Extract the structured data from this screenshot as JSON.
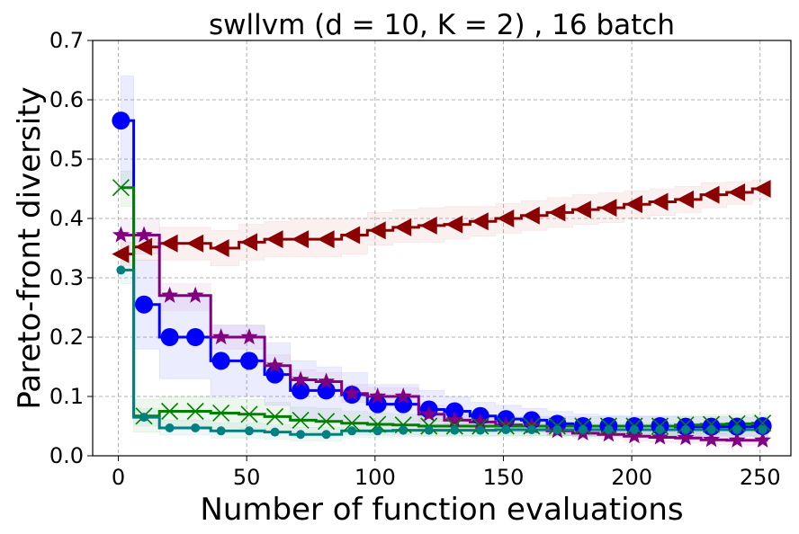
{
  "chart_data": {
    "type": "line",
    "title": "swllvm (d = 10, K = 2) , 16 batch",
    "xlabel": "Number of function evaluations",
    "ylabel": "Pareto-front diversity",
    "xlim": [
      -10,
      262
    ],
    "ylim": [
      0.0,
      0.7
    ],
    "xticks": [
      0,
      50,
      100,
      150,
      200,
      250
    ],
    "yticks": [
      0.0,
      0.1,
      0.2,
      0.3,
      0.4,
      0.5,
      0.6,
      0.7
    ],
    "xtick_labels": [
      "0",
      "50",
      "100",
      "150",
      "200",
      "250"
    ],
    "ytick_labels": [
      "0.0",
      "0.1",
      "0.2",
      "0.3",
      "0.4",
      "0.5",
      "0.6",
      "0.7"
    ],
    "grid": true,
    "series": [
      {
        "name": "Series (blue circle)",
        "color": "#0000ff",
        "marker": "circle",
        "band_color": "#6f6fff",
        "x": [
          1,
          10,
          20,
          30,
          40,
          51,
          61,
          71,
          81,
          91,
          101,
          111,
          121,
          131,
          141,
          151,
          161,
          171,
          181,
          191,
          201,
          211,
          221,
          231,
          241,
          251
        ],
        "values": [
          0.565,
          0.255,
          0.2,
          0.2,
          0.16,
          0.16,
          0.137,
          0.11,
          0.11,
          0.103,
          0.087,
          0.087,
          0.078,
          0.075,
          0.067,
          0.062,
          0.06,
          0.054,
          0.05,
          0.05,
          0.05,
          0.05,
          0.049,
          0.049,
          0.049,
          0.05
        ],
        "upper": [
          0.64,
          0.33,
          0.27,
          0.27,
          0.22,
          0.22,
          0.19,
          0.16,
          0.15,
          0.14,
          0.12,
          0.12,
          0.11,
          0.1,
          0.09,
          0.085,
          0.08,
          0.075,
          0.07,
          0.068,
          0.067,
          0.067,
          0.066,
          0.066,
          0.065,
          0.066
        ],
        "lower": [
          0.45,
          0.18,
          0.13,
          0.13,
          0.1,
          0.1,
          0.085,
          0.06,
          0.06,
          0.06,
          0.05,
          0.05,
          0.045,
          0.045,
          0.04,
          0.04,
          0.04,
          0.035,
          0.033,
          0.033,
          0.033,
          0.033,
          0.033,
          0.033,
          0.033,
          0.033
        ]
      },
      {
        "name": "Series (dark red triangle)",
        "color": "#8b0000",
        "marker": "triangle-left",
        "band_color": "#d98b8b",
        "x": [
          1,
          10,
          20,
          30,
          40,
          51,
          61,
          71,
          81,
          91,
          101,
          111,
          121,
          131,
          141,
          151,
          161,
          171,
          181,
          191,
          201,
          211,
          221,
          231,
          241,
          251
        ],
        "values": [
          0.34,
          0.352,
          0.358,
          0.358,
          0.35,
          0.36,
          0.365,
          0.365,
          0.365,
          0.372,
          0.38,
          0.385,
          0.388,
          0.39,
          0.395,
          0.4,
          0.405,
          0.41,
          0.415,
          0.418,
          0.424,
          0.428,
          0.432,
          0.44,
          0.444,
          0.45
        ],
        "upper": [
          0.36,
          0.375,
          0.385,
          0.385,
          0.38,
          0.39,
          0.395,
          0.4,
          0.4,
          0.4,
          0.41,
          0.415,
          0.418,
          0.42,
          0.42,
          0.425,
          0.43,
          0.435,
          0.44,
          0.443,
          0.447,
          0.45,
          0.454,
          0.46,
          0.462,
          0.465
        ],
        "lower": [
          0.32,
          0.33,
          0.33,
          0.33,
          0.32,
          0.33,
          0.335,
          0.335,
          0.335,
          0.34,
          0.355,
          0.36,
          0.36,
          0.365,
          0.37,
          0.375,
          0.38,
          0.385,
          0.39,
          0.393,
          0.4,
          0.405,
          0.41,
          0.418,
          0.424,
          0.432
        ]
      },
      {
        "name": "Series (purple star)",
        "color": "#800080",
        "marker": "star",
        "band_color": "#c48cc4",
        "x": [
          1,
          10,
          20,
          30,
          40,
          51,
          61,
          71,
          81,
          91,
          101,
          111,
          121,
          131,
          141,
          151,
          161,
          171,
          181,
          191,
          201,
          211,
          221,
          231,
          241,
          251
        ],
        "values": [
          0.372,
          0.372,
          0.27,
          0.27,
          0.2,
          0.2,
          0.152,
          0.128,
          0.125,
          0.105,
          0.1,
          0.1,
          0.07,
          0.06,
          0.057,
          0.052,
          0.05,
          0.042,
          0.038,
          0.036,
          0.033,
          0.031,
          0.03,
          0.027,
          0.026,
          0.026
        ],
        "upper": [
          0.4,
          0.4,
          0.29,
          0.29,
          0.22,
          0.22,
          0.17,
          0.145,
          0.14,
          0.12,
          0.115,
          0.115,
          0.085,
          0.072,
          0.068,
          0.063,
          0.06,
          0.052,
          0.048,
          0.046,
          0.043,
          0.041,
          0.04,
          0.037,
          0.036,
          0.036
        ],
        "lower": [
          0.34,
          0.34,
          0.245,
          0.245,
          0.18,
          0.18,
          0.135,
          0.11,
          0.11,
          0.09,
          0.085,
          0.085,
          0.058,
          0.05,
          0.047,
          0.043,
          0.041,
          0.034,
          0.03,
          0.028,
          0.025,
          0.023,
          0.022,
          0.019,
          0.018,
          0.018
        ]
      },
      {
        "name": "Series (green x)",
        "color": "#008000",
        "marker": "x",
        "band_color": "#7fbf7f",
        "x": [
          1,
          10,
          20,
          30,
          40,
          51,
          61,
          71,
          81,
          91,
          101,
          111,
          121,
          131,
          141,
          151,
          161,
          171,
          181,
          191,
          201,
          211,
          221,
          231,
          241,
          251
        ],
        "values": [
          0.452,
          0.067,
          0.075,
          0.075,
          0.072,
          0.07,
          0.066,
          0.06,
          0.058,
          0.055,
          0.053,
          0.052,
          0.05,
          0.05,
          0.05,
          0.05,
          0.05,
          0.05,
          0.05,
          0.05,
          0.05,
          0.05,
          0.052,
          0.053,
          0.054,
          0.055
        ],
        "upper": [
          0.48,
          0.095,
          0.1,
          0.1,
          0.098,
          0.095,
          0.09,
          0.082,
          0.08,
          0.075,
          0.072,
          0.07,
          0.068,
          0.067,
          0.066,
          0.066,
          0.066,
          0.066,
          0.066,
          0.066,
          0.066,
          0.066,
          0.068,
          0.069,
          0.07,
          0.071
        ],
        "lower": [
          0.42,
          0.04,
          0.05,
          0.05,
          0.048,
          0.046,
          0.043,
          0.04,
          0.038,
          0.036,
          0.035,
          0.035,
          0.034,
          0.034,
          0.034,
          0.034,
          0.034,
          0.034,
          0.034,
          0.034,
          0.034,
          0.034,
          0.036,
          0.037,
          0.038,
          0.039
        ]
      },
      {
        "name": "Series (teal dot)",
        "color": "#008080",
        "marker": "dot",
        "band_color": "#7fbfbf",
        "x": [
          1,
          10,
          20,
          30,
          40,
          51,
          61,
          71,
          81,
          91,
          101,
          111,
          121,
          131,
          141,
          151,
          161,
          171,
          181,
          191,
          201,
          211,
          221,
          231,
          241,
          251
        ],
        "values": [
          0.313,
          0.065,
          0.047,
          0.047,
          0.042,
          0.042,
          0.04,
          0.036,
          0.036,
          0.042,
          0.042,
          0.043,
          0.043,
          0.043,
          0.043,
          0.044,
          0.044,
          0.044,
          0.044,
          0.044,
          0.044,
          0.044,
          0.044,
          0.044,
          0.044,
          0.044
        ],
        "upper": [
          0.33,
          0.08,
          0.06,
          0.06,
          0.055,
          0.055,
          0.052,
          0.048,
          0.048,
          0.053,
          0.053,
          0.054,
          0.054,
          0.054,
          0.054,
          0.055,
          0.055,
          0.055,
          0.055,
          0.055,
          0.055,
          0.055,
          0.055,
          0.055,
          0.055,
          0.055
        ],
        "lower": [
          0.29,
          0.05,
          0.035,
          0.035,
          0.03,
          0.03,
          0.028,
          0.025,
          0.025,
          0.031,
          0.031,
          0.032,
          0.032,
          0.032,
          0.032,
          0.033,
          0.033,
          0.033,
          0.033,
          0.033,
          0.033,
          0.033,
          0.033,
          0.033,
          0.033,
          0.033
        ]
      }
    ]
  }
}
